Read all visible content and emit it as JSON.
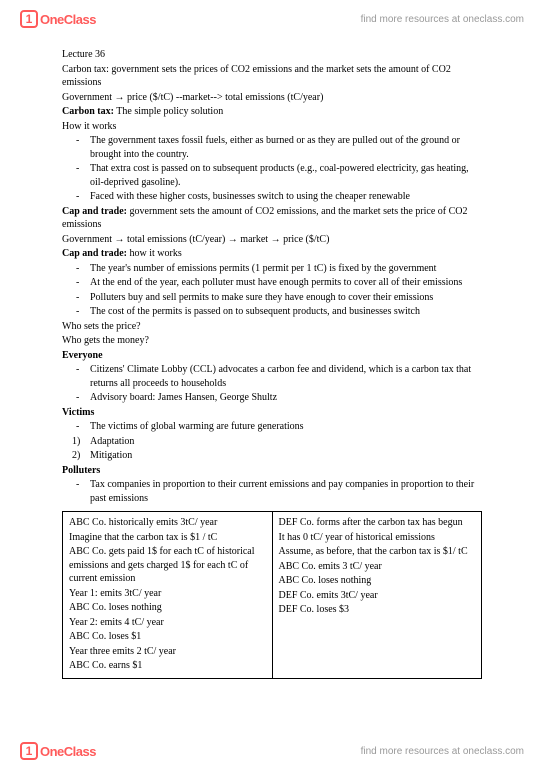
{
  "brand": {
    "icon": "1",
    "name": "OneClass",
    "tagline": "find more resources at oneclass.com"
  },
  "lecture_title": "Lecture 36",
  "p1": "Carbon tax: government sets the prices of CO2 emissions and the market sets the amount of CO2 emissions",
  "p2": "Government → price ($/tC) --market--> total emissions (tC/year)",
  "h_carbontax": "Carbon tax:",
  "h_carbontax_rest": " The simple policy solution",
  "p_howworks": "How it works",
  "ct_list": {
    "i0": "The government taxes fossil fuels, either as burned or as they are pulled out of the ground or brought into the country.",
    "i1": "That extra cost is passed on to subsequent products (e.g., coal-powered electricity, gas heating, oil-deprived gasoline).",
    "i2": "Faced with these higher costs, businesses switch to using the cheaper renewable"
  },
  "h_capandtrade": "Cap and trade:",
  "h_capandtrade_rest": " government sets the amount of CO2 emissions, and the market sets the price of CO2 emissions",
  "p3": "Government → total emissions (tC/year) → market → price ($/tC)",
  "h_cat2": "Cap and trade:",
  "h_cat2_rest": " how it works",
  "cat_list": {
    "i0": "The year's number of emissions permits (1 permit per 1 tC) is fixed by the government",
    "i1": "At the end of the year, each polluter must have enough permits to cover all of their emissions",
    "i2": "Polluters buy and sell permits to make sure they have enough to cover their emissions",
    "i3": "The cost of the permits is passed on to subsequent products, and businesses switch"
  },
  "q1": "Who sets the price?",
  "q2": "Who gets the money?",
  "h_everyone": "Everyone",
  "ev_list": {
    "i0": "Citizens' Climate Lobby (CCL) advocates a carbon fee and dividend, which is a carbon tax that returns all proceeds to households",
    "i1": "Advisory board: James Hansen, George Shultz"
  },
  "h_victims": "Victims",
  "vi_list": {
    "i0": "The victims of global warming are future generations"
  },
  "vi_num": {
    "i0": "Adaptation",
    "i1": "Mitigation"
  },
  "h_polluters": "Polluters",
  "po_list": {
    "i0": "Tax companies in proportion to their current emissions and pay companies in proportion to their past emissions"
  },
  "table": {
    "left": {
      "l0": "ABC Co. historically emits 3tC/ year",
      "l1": "Imagine that the carbon tax is $1 / tC",
      "l2": "ABC Co. gets paid 1$ for each tC of historical emissions and gets charged 1$ for each tC of current emission",
      "l3": "Year 1: emits 3tC/ year",
      "l4": "ABC Co. loses nothing",
      "l5": "Year 2: emits 4 tC/ year",
      "l6": "ABC Co. loses $1",
      "l7": "Year three emits 2 tC/ year",
      "l8": "ABC Co. earns $1"
    },
    "right": {
      "r0": "DEF Co. forms after the carbon tax has begun",
      "r1": "It has 0 tC/ year of historical emissions",
      "r2": "Assume, as before, that the carbon tax is $1/ tC",
      "r3": "ABC Co. emits 3 tC/ year",
      "r4": "ABC Co. loses nothing",
      "r5": "DEF Co. emits 3tC/ year",
      "r6": "DEF Co. loses $3"
    }
  }
}
